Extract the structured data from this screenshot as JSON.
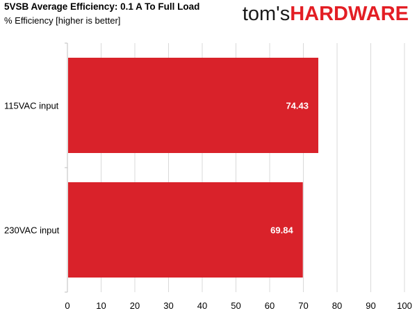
{
  "logo": {
    "prefix": "tom's",
    "brand": "HARDWARE",
    "brand_color": "#e31e24"
  },
  "chart_data": {
    "type": "bar",
    "orientation": "horizontal",
    "title": "5VSB Average Efficiency: 0.1 A To Full Load",
    "subtitle": "% Efficiency [higher is better]",
    "categories": [
      "115VAC input",
      "230VAC input"
    ],
    "values": [
      74.43,
      69.84
    ],
    "value_labels": [
      "74.43",
      "69.84"
    ],
    "xlabel": "",
    "ylabel": "",
    "xlim": [
      0,
      100
    ],
    "x_ticks": [
      "0",
      "10",
      "20",
      "30",
      "40",
      "50",
      "60",
      "70",
      "80",
      "90",
      "100"
    ],
    "grid": true,
    "legend": "none",
    "bar_color": "#d9222a",
    "label_color": "#ffffff"
  }
}
